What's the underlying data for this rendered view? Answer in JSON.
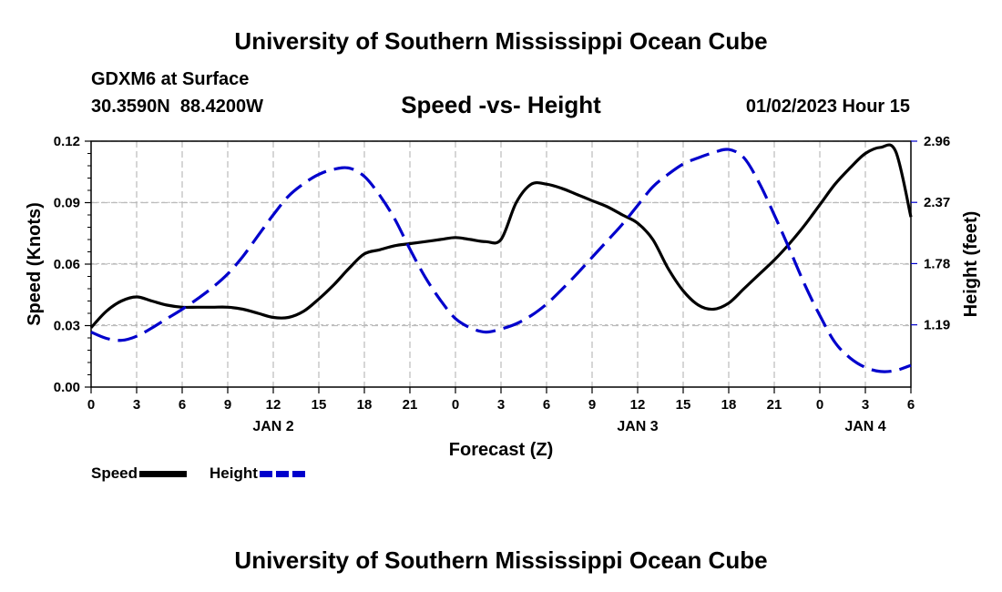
{
  "header": {
    "title": "University of Southern Mississippi Ocean Cube",
    "station": "GDXM6 at Surface",
    "coords": "30.3590N  88.4200W",
    "subtitle": "Speed -vs- Height",
    "datetime": "01/02/2023 Hour 15"
  },
  "footer": {
    "title": "University of Southern Mississippi Ocean Cube"
  },
  "legend": {
    "speed_label": "Speed",
    "height_label": "Height"
  },
  "colors": {
    "speed": "#000000",
    "height": "#0000cc",
    "grid": "#bbbbbb"
  },
  "chart_data": {
    "type": "line",
    "title": "Speed -vs- Height",
    "xlabel": "Forecast (Z)",
    "ylabel": "Speed (Knots)",
    "y2label": "Height (feet)",
    "x_ticks": [
      "0",
      "3",
      "6",
      "9",
      "12",
      "15",
      "18",
      "21",
      "0",
      "3",
      "6",
      "9",
      "12",
      "15",
      "18",
      "21",
      "0",
      "3",
      "6"
    ],
    "x_range": [
      0,
      54
    ],
    "day_labels": [
      {
        "label": "JAN 2",
        "at_hour": 12
      },
      {
        "label": "JAN 3",
        "at_hour": 36
      },
      {
        "label": "JAN 4",
        "at_hour": 51
      }
    ],
    "ylim": [
      0,
      0.12
    ],
    "y_ticks": [
      "0.00",
      "0.03",
      "0.06",
      "0.09",
      "0.12"
    ],
    "y2lim": [
      0.59,
      2.96
    ],
    "y2_ticks": [
      "1.19",
      "1.78",
      "2.37",
      "2.96"
    ],
    "grid": true,
    "series": [
      {
        "name": "Speed",
        "axis": "left",
        "style": "solid",
        "x": [
          0,
          1,
          2,
          3,
          4,
          5,
          6,
          7,
          8,
          9,
          10,
          11,
          12,
          13,
          14,
          15,
          16,
          17,
          18,
          19,
          20,
          21,
          22,
          23,
          24,
          25,
          26,
          27,
          28,
          29,
          30,
          31,
          32,
          33,
          34,
          35,
          36,
          37,
          38,
          39,
          40,
          41,
          42,
          43,
          44,
          45,
          46,
          47,
          48,
          49,
          50,
          51,
          52,
          53,
          54
        ],
        "values": [
          0.029,
          0.037,
          0.042,
          0.044,
          0.042,
          0.04,
          0.039,
          0.039,
          0.039,
          0.039,
          0.038,
          0.036,
          0.034,
          0.034,
          0.037,
          0.043,
          0.05,
          0.058,
          0.065,
          0.067,
          0.069,
          0.07,
          0.071,
          0.072,
          0.073,
          0.072,
          0.071,
          0.072,
          0.09,
          0.099,
          0.099,
          0.097,
          0.094,
          0.091,
          0.088,
          0.084,
          0.08,
          0.072,
          0.058,
          0.047,
          0.04,
          0.038,
          0.041,
          0.048,
          0.055,
          0.062,
          0.07,
          0.079,
          0.089,
          0.099,
          0.107,
          0.114,
          0.117,
          0.115,
          0.083
        ]
      },
      {
        "name": "Height",
        "axis": "right",
        "style": "dashed",
        "x": [
          0,
          1,
          2,
          3,
          4,
          5,
          6,
          7,
          8,
          9,
          10,
          11,
          12,
          13,
          14,
          15,
          16,
          17,
          18,
          19,
          20,
          21,
          22,
          23,
          24,
          25,
          26,
          27,
          28,
          29,
          30,
          31,
          32,
          33,
          34,
          35,
          36,
          37,
          38,
          39,
          40,
          41,
          42,
          43,
          44,
          45,
          46,
          47,
          48,
          49,
          50,
          51,
          52,
          53,
          54
        ],
        "values": [
          1.12,
          1.06,
          1.04,
          1.08,
          1.16,
          1.25,
          1.34,
          1.44,
          1.55,
          1.68,
          1.85,
          2.05,
          2.25,
          2.43,
          2.55,
          2.64,
          2.69,
          2.7,
          2.62,
          2.44,
          2.21,
          1.92,
          1.65,
          1.43,
          1.25,
          1.16,
          1.12,
          1.15,
          1.2,
          1.28,
          1.39,
          1.53,
          1.68,
          1.84,
          2.0,
          2.16,
          2.34,
          2.52,
          2.64,
          2.74,
          2.8,
          2.85,
          2.88,
          2.8,
          2.56,
          2.25,
          1.92,
          1.58,
          1.28,
          1.02,
          0.87,
          0.78,
          0.74,
          0.75,
          0.8
        ]
      }
    ]
  }
}
